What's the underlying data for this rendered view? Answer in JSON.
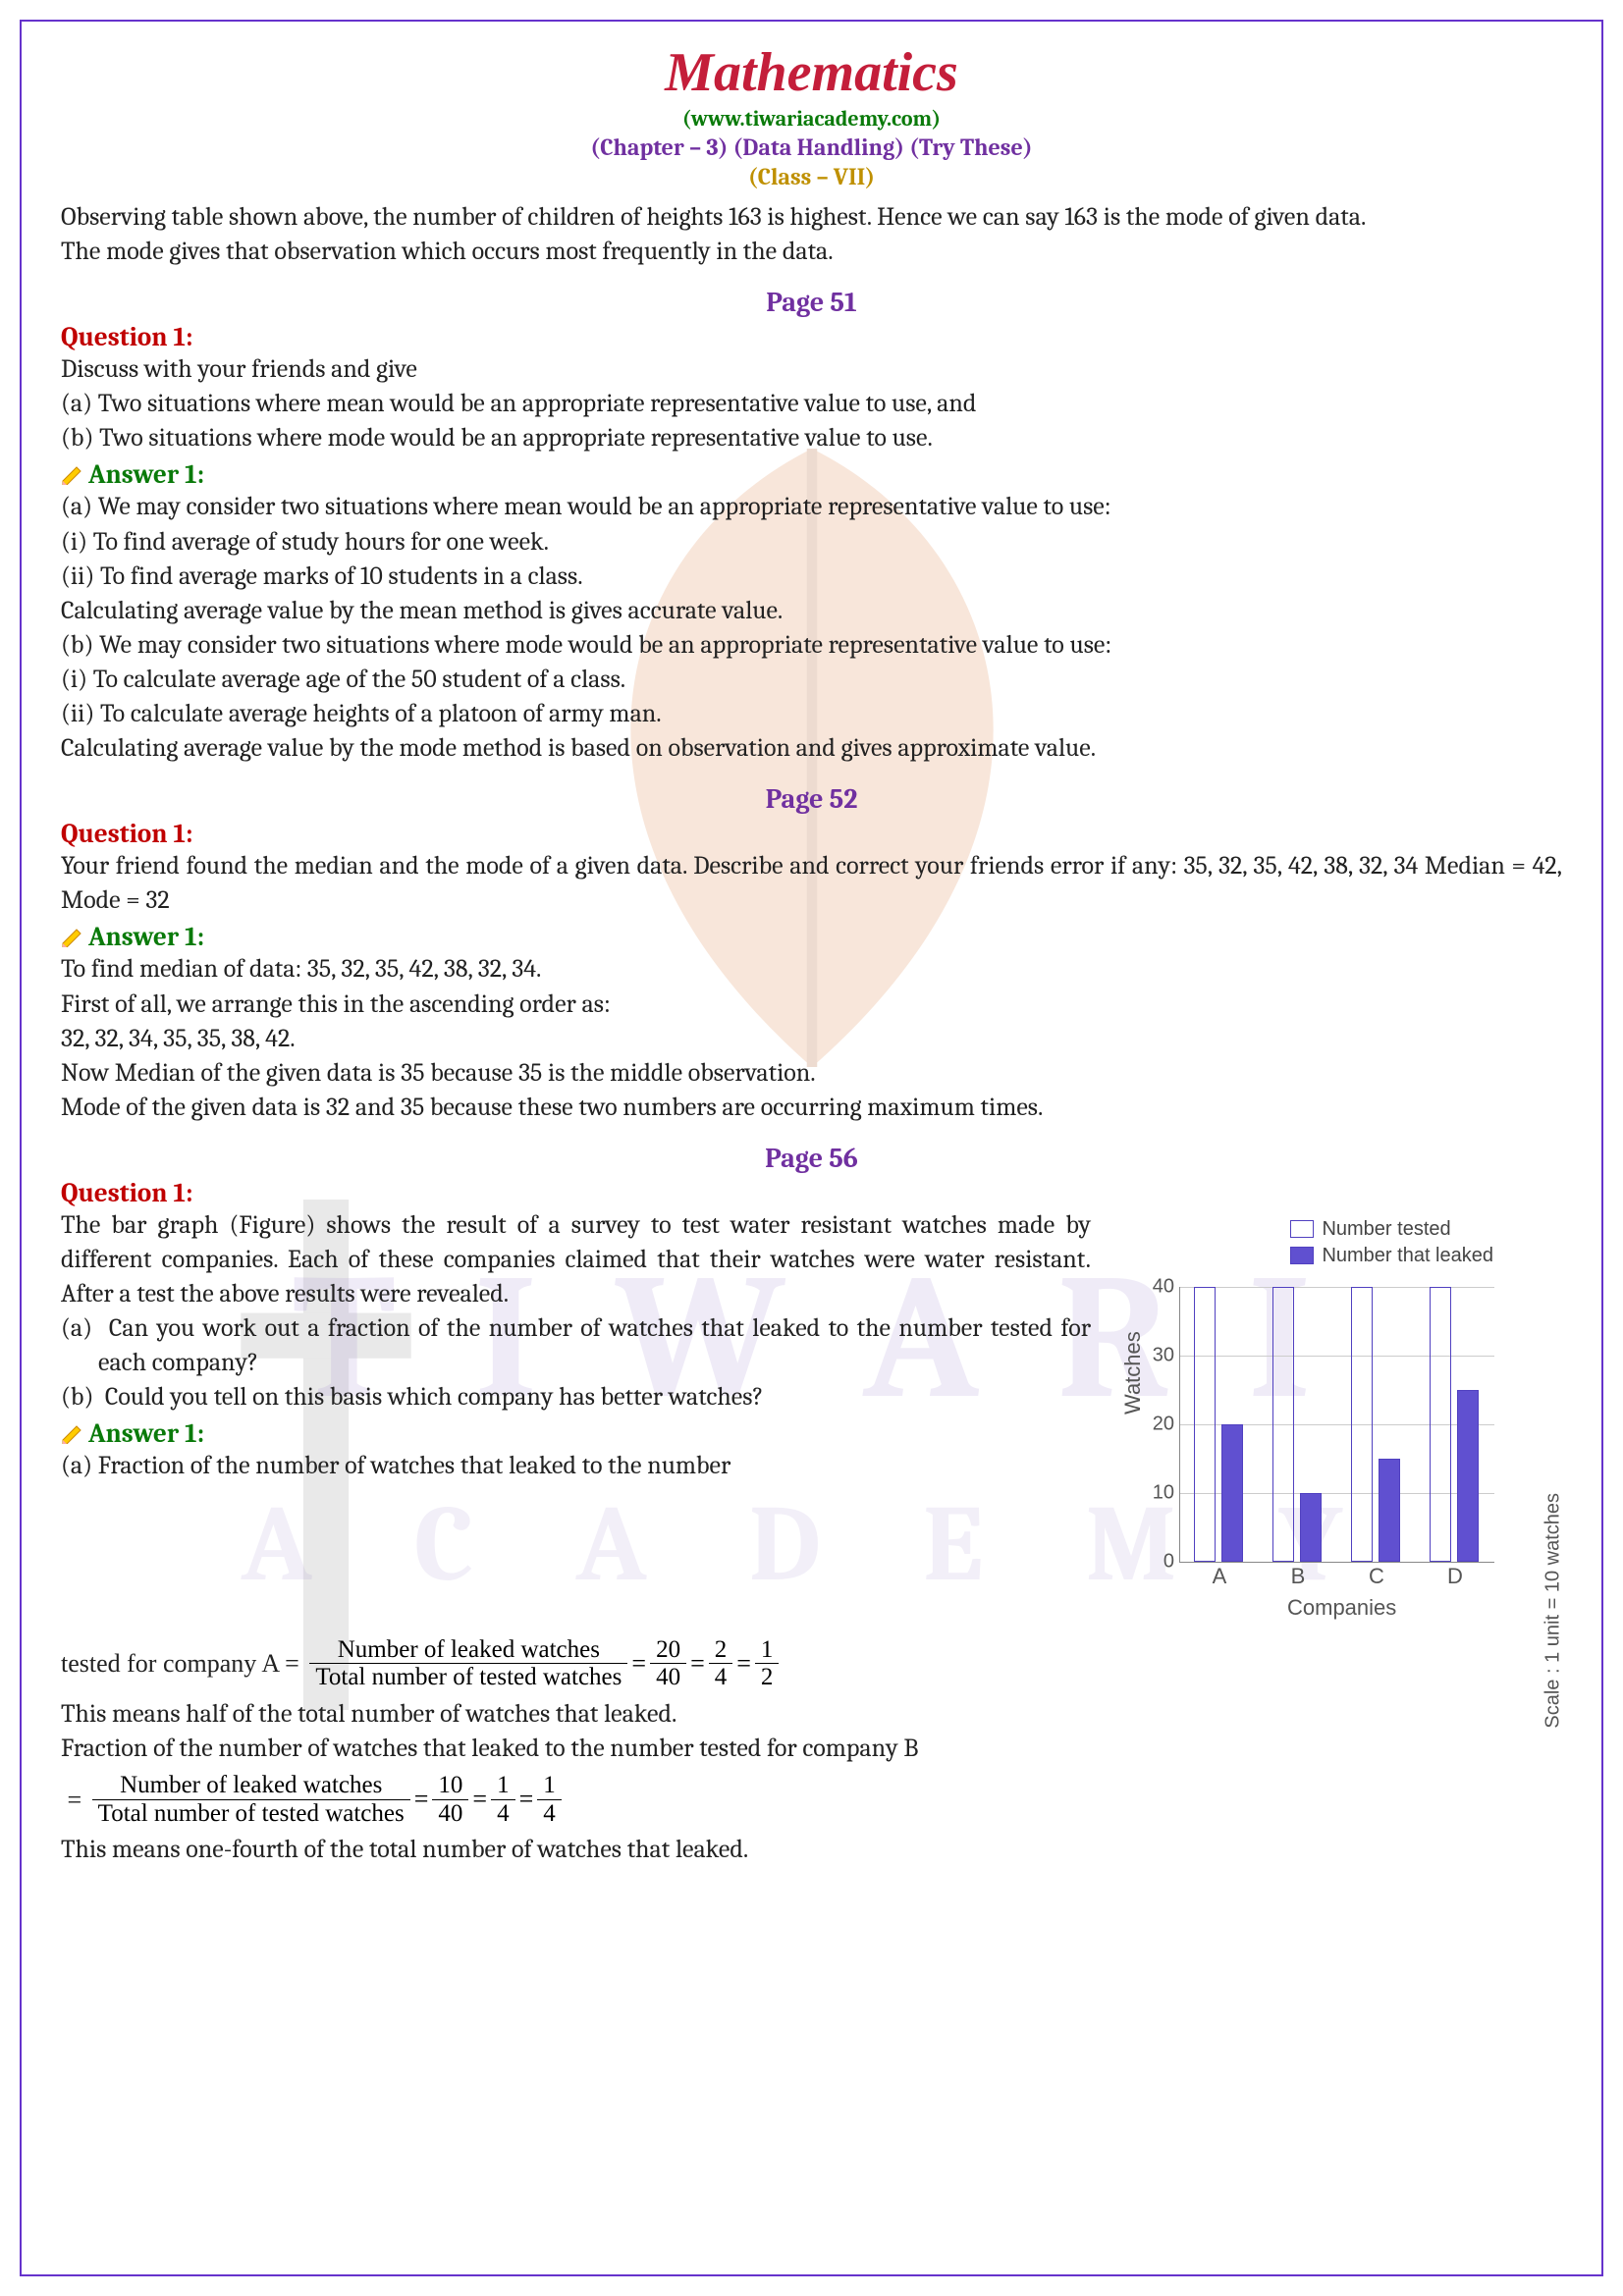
{
  "header": {
    "title": "Mathematics",
    "site": "(www.tiwariacademy.com)",
    "chapter": "(Chapter – 3) (Data Handling) (Try These)",
    "class": "(Class – VII)"
  },
  "intro": {
    "p1": "Observing table shown above, the number of children of heights 163 is highest. Hence we can say 163 is the mode of given data.",
    "p2": "The mode gives that observation which occurs most frequently in the data."
  },
  "p51": {
    "label": "Page 51",
    "q1_title": "Question 1:",
    "q1_l1": "Discuss with your friends and give",
    "q1_l2": "(a) Two situations where mean would be an appropriate representative value to use, and",
    "q1_l3": "(b) Two situations where mode would be an appropriate representative value to use.",
    "a1_title": "Answer 1:",
    "a1_l1": "(a) We may consider two situations where mean would be an appropriate representative value to use:",
    "a1_l2": "(i) To find average of study hours for one week.",
    "a1_l3": "(ii) To find average marks of 10 students in a class.",
    "a1_l4": "Calculating average value by the mean method is gives accurate value.",
    "a1_l5": "(b) We may consider two situations where mode would be an appropriate representative value to use:",
    "a1_l6": "(i) To calculate average age of the 50 student of a class.",
    "a1_l7": "(ii) To calculate average heights of a platoon of army man.",
    "a1_l8": "Calculating average value by the mode method is based on observation and gives approximate value."
  },
  "p52": {
    "label": "Page 52",
    "q1_title": "Question 1:",
    "q1_l1": "Your friend found the median and the mode of a given data. Describe and correct your friends error if any: 35, 32, 35, 42, 38, 32, 34 Median = 42, Mode = 32",
    "a1_title": "Answer 1:",
    "a1_l1": "To find median of data: 35, 32, 35, 42, 38, 32, 34.",
    "a1_l2": "First of all, we arrange this in the ascending order as:",
    "a1_l3": " 32, 32, 34, 35, 35, 38, 42.",
    "a1_l4": "Now Median of the given data is 35 because 35 is the middle observation.",
    "a1_l5": "Mode of the given data is 32 and 35 because these two numbers are occurring maximum times."
  },
  "p56": {
    "label": "Page 56",
    "q1_title": "Question 1:",
    "q1_text": "The bar graph (Figure) shows the result of a survey to test water resistant watches made by different companies. Each of these companies claimed that their watches were water resistant. After a test the above results were revealed.",
    "q1_a": "Can you work out a fraction of the number of watches that leaked to the number tested for each company?",
    "q1_b": "Could you tell on this basis which company has better watches?",
    "a1_title": "Answer 1:",
    "a1_intro": "(a) Fraction of the number of watches that leaked to the number tested for company A = ",
    "frac_num_label": "Number of leaked watches",
    "frac_den_label": "Total number of tested watches",
    "fracA": {
      "v1n": "20",
      "v1d": "40",
      "v2n": "2",
      "v2d": "4",
      "v3n": "1",
      "v3d": "2"
    },
    "a1_mean_half": "This means half of the total number of watches that leaked.",
    "a1_b_intro": "Fraction of the number of watches that leaked to the number tested for company B",
    "fracB": {
      "v1n": "10",
      "v1d": "40",
      "v2n": "1",
      "v2d": "4",
      "v3n": "1",
      "v3d": "4"
    },
    "a1_mean_fourth": "This means one-fourth of the total number of watches that leaked."
  },
  "chart": {
    "legend1": "Number tested",
    "legend2": "Number that leaked",
    "ylabel": "Watches",
    "xlabel": "Companies",
    "scale": "Scale :  1 unit = 10 watches",
    "ymax": 40,
    "yticks": [
      0,
      10,
      20,
      30,
      40
    ],
    "categories": [
      "A",
      "B",
      "C",
      "D"
    ],
    "tested": [
      40,
      40,
      40,
      40
    ],
    "leaked": [
      20,
      10,
      15,
      25
    ],
    "bar_outline": "#5040c0",
    "bar_fill": "#6050d0",
    "grid_color": "#cccccc"
  }
}
